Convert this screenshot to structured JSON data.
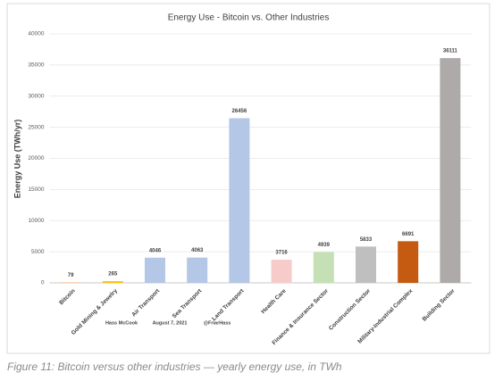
{
  "chart_data": {
    "type": "bar",
    "title": "Energy Use - Bitcoin vs. Other Industries",
    "y_label": "Energy Use (TWh/yr)",
    "categories": [
      "Bitcoin",
      "Gold Mining & Jewelry",
      "Air Transport",
      "Sea Transport",
      "Land Transport",
      "Health Care",
      "Finance & Insurance Sector",
      "Construction Sector",
      "Military-Industrial Complex",
      "Building Sector"
    ],
    "series": [
      {
        "values": [
          79,
          265,
          4046,
          4063,
          26456,
          3716,
          4939,
          5833,
          6691,
          36111
        ],
        "colors": [
          "#f4b183",
          "#ffc000",
          "#b4c7e7",
          "#b4c7e7",
          "#b4c7e7",
          "#f8cbcb",
          "#c5e0b4",
          "#bfbfbf",
          "#c55a11",
          "#aeaaaa"
        ]
      }
    ],
    "ylim": [
      0,
      40000
    ],
    "yticks": [
      0,
      5000,
      10000,
      15000,
      20000,
      25000,
      30000,
      35000,
      40000
    ],
    "grid": true,
    "annotations": [
      "Hass McCook",
      "August 7, 2021",
      "@FriarHass"
    ],
    "caption": "Figure 11: Bitcoin versus other industries — yearly energy use, in TWh"
  }
}
